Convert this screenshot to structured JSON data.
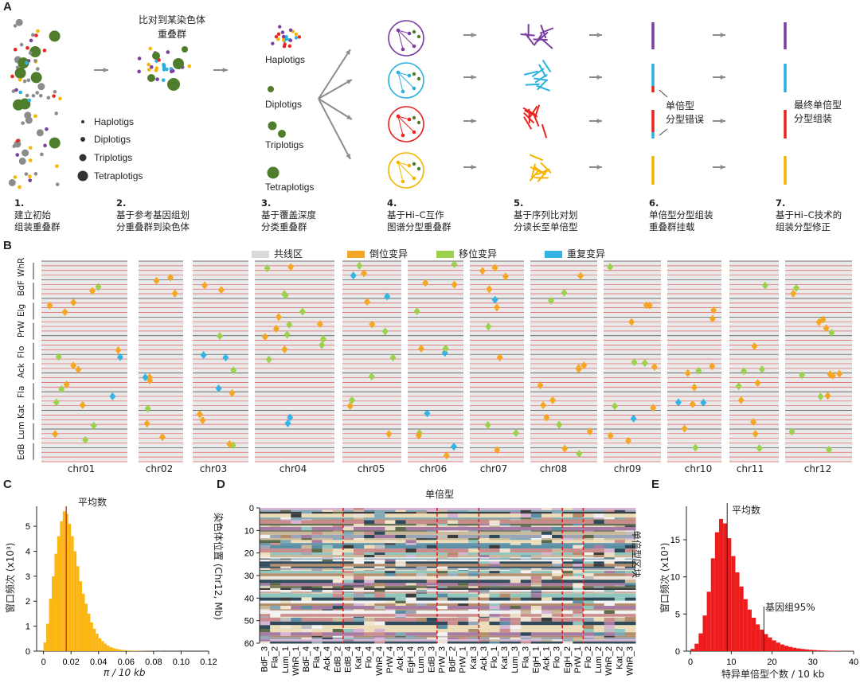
{
  "panel_a": {
    "label": "A",
    "top_caption": [
      "比对到某染色体",
      "重叠群"
    ],
    "legend": [
      "Haplotigs",
      "Diplotigs",
      "Triplotigs",
      "Tetraplotigs"
    ],
    "col3_labels": [
      "Haplotigs",
      "Diplotigs",
      "Triplotigs",
      "Tetraplotigs"
    ],
    "note_error": [
      "单倍型",
      "分型错误"
    ],
    "note_final": [
      "最终单倍型",
      "分型组装"
    ],
    "steps": [
      {
        "num": "1.",
        "lines": [
          "建立初始",
          "组装重叠群"
        ]
      },
      {
        "num": "2.",
        "lines": [
          "基于参考基因组划",
          "分重叠群到染色体"
        ]
      },
      {
        "num": "3.",
        "lines": [
          "基于覆盖深度",
          "分类重叠群"
        ]
      },
      {
        "num": "4.",
        "lines": [
          "基于Hi–C互作",
          "图谱分型重叠群"
        ]
      },
      {
        "num": "5.",
        "lines": [
          "基于序列比对划",
          "分读长至单倍型"
        ]
      },
      {
        "num": "6.",
        "lines": [
          "单倍型分型组装",
          "重叠群挂载"
        ]
      },
      {
        "num": "7.",
        "lines": [
          "基于Hi–C技术的",
          "组装分型修正"
        ]
      }
    ],
    "colors": {
      "purple": "#7a3fa0",
      "cyan": "#2bb1e0",
      "red": "#e8241f",
      "yellow": "#f5b400",
      "green": "#4e7d2b",
      "gray": "#8c8c8c"
    }
  },
  "panel_b": {
    "label": "B",
    "legend": [
      {
        "name": "共线区",
        "color": "#d9d9d9"
      },
      {
        "name": "倒位变异",
        "color": "#f5a623"
      },
      {
        "name": "移位变异",
        "color": "#9bd14d"
      },
      {
        "name": "重复变异",
        "color": "#34b4e4"
      }
    ],
    "row_labels": [
      "WhR",
      "BdF",
      "Elg",
      "PrW",
      "Flo",
      "Ack",
      "Fla",
      "Kat",
      "Lum",
      "EdB"
    ],
    "chromosomes": [
      "chr01",
      "chr02",
      "chr03",
      "chr04",
      "chr05",
      "chr06",
      "chr07",
      "chr08",
      "chr09",
      "chr10",
      "chr11",
      "chr12"
    ]
  },
  "panel_c": {
    "label": "C",
    "ylabel": "窗口频次 (x10³)",
    "xlabel": "π / 10 kb",
    "mean_label": "平均数",
    "chart_data": {
      "type": "bar",
      "xlabel": "π / 10 kb",
      "ylabel": "窗口频次 (x10³)",
      "xlim": [
        -0.005,
        0.12
      ],
      "ylim": [
        0,
        5.8
      ],
      "x_ticks": [
        "0",
        "0.02",
        "0.04",
        "0.06",
        "0.08",
        "0.10",
        "0.12"
      ],
      "y_ticks": [
        "0",
        "1",
        "2",
        "3",
        "4",
        "5"
      ],
      "mean": 0.0165,
      "bin_width": 0.002,
      "x": [
        0.0,
        0.002,
        0.004,
        0.006,
        0.008,
        0.01,
        0.012,
        0.014,
        0.016,
        0.018,
        0.02,
        0.022,
        0.024,
        0.026,
        0.028,
        0.03,
        0.032,
        0.034,
        0.036,
        0.038,
        0.04,
        0.042,
        0.044,
        0.046,
        0.048,
        0.05,
        0.052,
        0.054,
        0.056,
        0.058,
        0.06,
        0.062,
        0.064,
        0.066,
        0.068,
        0.07,
        0.072,
        0.074,
        0.076,
        0.078,
        0.08,
        0.084,
        0.09,
        0.096,
        0.102
      ],
      "values": [
        0.35,
        1.1,
        2.1,
        3.0,
        3.9,
        4.6,
        5.2,
        5.6,
        5.5,
        5.1,
        4.6,
        4.0,
        3.4,
        2.8,
        2.3,
        1.9,
        1.5,
        1.15,
        0.9,
        0.7,
        0.52,
        0.4,
        0.3,
        0.22,
        0.16,
        0.12,
        0.09,
        0.07,
        0.05,
        0.04,
        0.03,
        0.025,
        0.02,
        0.015,
        0.012,
        0.01,
        0.008,
        0.006,
        0.005,
        0.004,
        0.003,
        0.003,
        0.002,
        0.002,
        0.001
      ],
      "color": "#fbb614",
      "mean_color": "#d62d20"
    }
  },
  "panel_d": {
    "label": "D",
    "title": "单倍型",
    "ylabel": "染色体位置 (Chr12, Mb)",
    "right_label": "单倍型区块",
    "y_ticks": [
      "0",
      "10",
      "20",
      "30",
      "40",
      "50",
      "60"
    ],
    "x_labels": [
      "BdF_3",
      "Fla_2",
      "Lum_1",
      "WhR_1",
      "BdF_4",
      "Fla_4",
      "Ack_4",
      "EdB_2",
      "EdB_4",
      "Kat_4",
      "Flo_4",
      "WhR_4",
      "PrW_4",
      "Ack_3",
      "EgH_4",
      "Lum_3",
      "EdB_3",
      "PrW_3",
      "BdF_2",
      "PrW_1",
      "Kat_3",
      "Ack_3",
      "Flo_1",
      "Kat_3",
      "Lum_3",
      "Fla_3",
      "EgH_1",
      "Ack_1",
      "Flo_3",
      "EgH_2",
      "PrW_1",
      "Flo_2",
      "Lum_2",
      "WhR_2",
      "Kat_2",
      "WhR_3"
    ],
    "group_boundaries_after_col": [
      8,
      17,
      21,
      29,
      31
    ]
  },
  "panel_e": {
    "label": "E",
    "ylabel": "窗口频次 (x10³)",
    "xlabel": "特异单倍型个数 / 10 kb",
    "mean_label": "平均数",
    "pct_label": "基因组95%",
    "chart_data": {
      "type": "bar",
      "xlabel": "特异单倍型个数 / 10 kb",
      "ylabel": "窗口频次 (x10³)",
      "xlim": [
        -1,
        40
      ],
      "ylim": [
        0,
        19.5
      ],
      "x_ticks": [
        "0",
        "10",
        "20",
        "30",
        "40"
      ],
      "y_ticks": [
        "0",
        "5",
        "10",
        "15"
      ],
      "mean": 9,
      "p95": 18,
      "x": [
        0,
        1,
        2,
        3,
        4,
        5,
        6,
        7,
        8,
        9,
        10,
        11,
        12,
        13,
        14,
        15,
        16,
        17,
        18,
        19,
        20,
        21,
        22,
        23,
        24,
        25,
        26,
        27,
        28,
        29,
        30,
        31,
        32,
        33,
        34,
        35,
        36,
        37,
        38,
        39
      ],
      "values": [
        0.3,
        1.0,
        2.4,
        4.8,
        8.0,
        12.5,
        16.0,
        17.8,
        17.2,
        15.2,
        12.8,
        10.6,
        8.7,
        7.0,
        5.6,
        4.5,
        3.6,
        2.9,
        2.3,
        1.85,
        1.45,
        1.15,
        0.9,
        0.72,
        0.58,
        0.46,
        0.37,
        0.3,
        0.24,
        0.19,
        0.15,
        0.12,
        0.1,
        0.08,
        0.06,
        0.05,
        0.04,
        0.03,
        0.02,
        0.02
      ],
      "color": "#ee1c1c",
      "line_color": "#222222"
    }
  }
}
